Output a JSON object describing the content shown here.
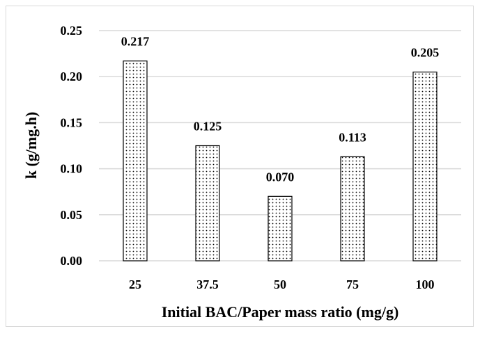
{
  "chart_data": {
    "type": "bar",
    "categories": [
      "25",
      "37.5",
      "50",
      "75",
      "100"
    ],
    "values": [
      0.217,
      0.125,
      0.07,
      0.113,
      0.205
    ],
    "data_labels": [
      "0.217",
      "0.125",
      "0.070",
      "0.113",
      "0.205"
    ],
    "xlabel": "Initial BAC/Paper mass ratio (mg/g)",
    "ylabel": "k (g/mg.h)",
    "ylim": [
      0,
      0.25
    ],
    "yticks": [
      "0.00",
      "0.05",
      "0.10",
      "0.15",
      "0.20",
      "0.25"
    ],
    "grid": true,
    "bar_pattern": "dotted",
    "bar_fill": "#ffffff",
    "bar_stroke": "#000000",
    "grid_color": "#d9d9d9"
  }
}
